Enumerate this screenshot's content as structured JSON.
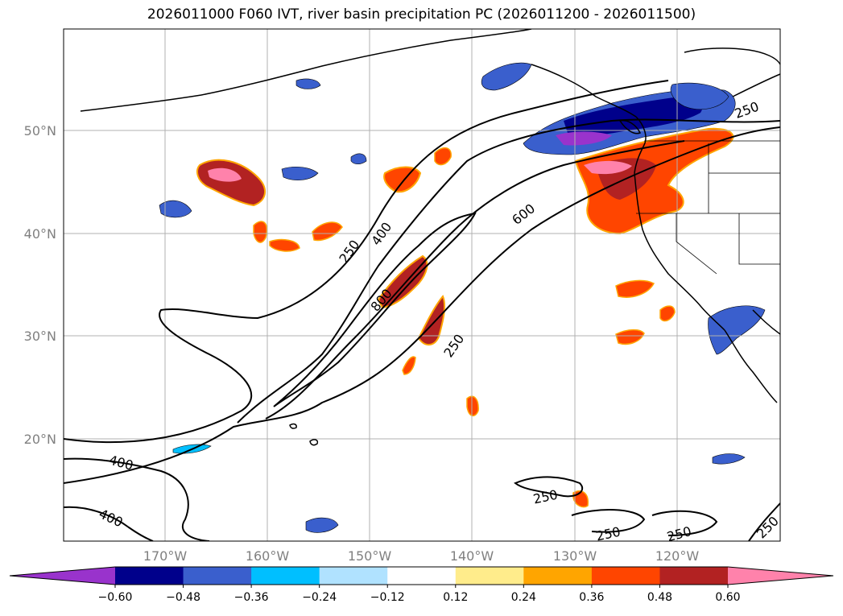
{
  "title": "2026011000 F060 IVT, river basin precipitation PC (2026011200 - 2026011500)",
  "map": {
    "lon_ticks": [
      {
        "lon": -170,
        "label": "170°W"
      },
      {
        "lon": -160,
        "label": "160°W"
      },
      {
        "lon": -150,
        "label": "150°W"
      },
      {
        "lon": -140,
        "label": "140°W"
      },
      {
        "lon": -130,
        "label": "130°W"
      },
      {
        "lon": -120,
        "label": "120°W"
      }
    ],
    "lat_ticks": [
      {
        "lat": 50,
        "label": "50°N"
      },
      {
        "lat": 40,
        "label": "40°N"
      },
      {
        "lat": 30,
        "label": "30°N"
      },
      {
        "lat": 20,
        "label": "20°N"
      }
    ],
    "grid": true,
    "colors": {
      "grid": "#b0b0b0",
      "tick_label": "#808080",
      "contour": "#000000"
    },
    "contour_labels": [
      {
        "text": "250"
      },
      {
        "text": "400"
      },
      {
        "text": "800"
      },
      {
        "text": "600"
      },
      {
        "text": "250"
      },
      {
        "text": "400"
      },
      {
        "text": "400"
      },
      {
        "text": "250"
      },
      {
        "text": "250"
      },
      {
        "text": "250"
      },
      {
        "text": "250"
      },
      {
        "text": "250"
      }
    ]
  },
  "colorbar": {
    "colors": [
      "#9933cc",
      "#00008b",
      "#3a5fcd",
      "#00bfff",
      "#b0e2ff",
      "#ffffff",
      "#ffec8b",
      "#ffa500",
      "#ff4500",
      "#b22222",
      "#ff82ab"
    ],
    "ticks": [
      "−0.60",
      "−0.48",
      "−0.36",
      "−0.24",
      "−0.12",
      "0.12",
      "0.24",
      "0.36",
      "0.48",
      "0.60"
    ]
  }
}
